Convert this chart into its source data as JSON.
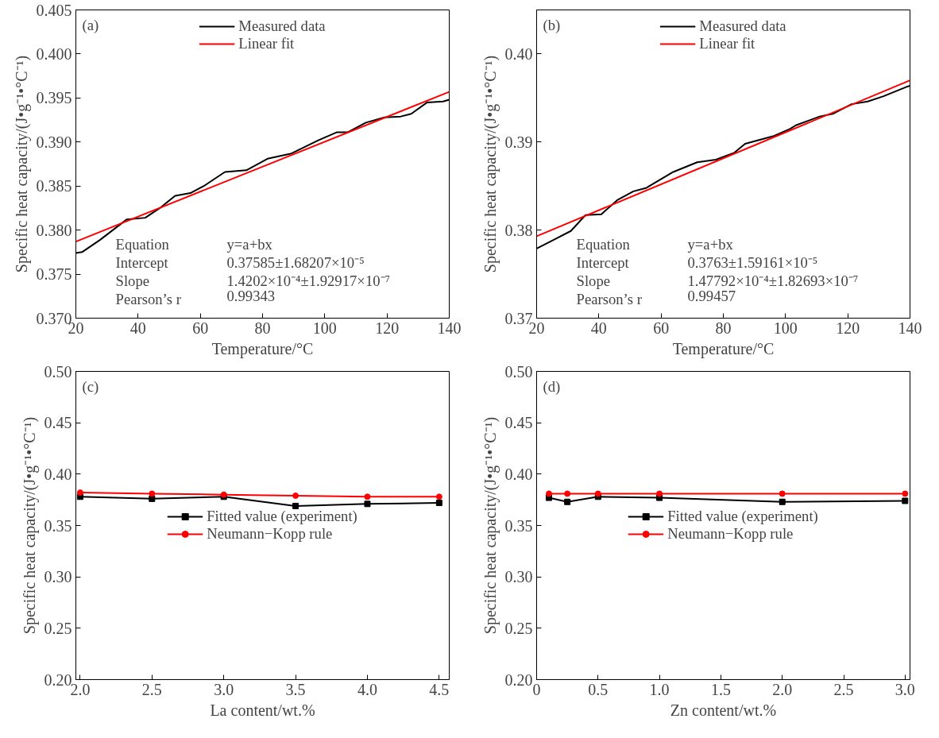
{
  "chart_data": [
    {
      "type": "line",
      "title": "(a)",
      "xlabel": "Temperature/°C",
      "ylabel": "Specific heat capacity/(J•g⁻¹•°C⁻¹)",
      "xlim": [
        20,
        140
      ],
      "xticks": [
        20,
        40,
        60,
        80,
        100,
        120,
        140
      ],
      "ylim": [
        0.37,
        0.405
      ],
      "yticks": [
        {
          "value": 0.37,
          "label": "0.370"
        },
        0.375,
        {
          "value": 0.38,
          "label": "0.380"
        },
        0.385,
        {
          "value": 0.39,
          "label": "0.390"
        },
        0.395,
        {
          "value": 0.4,
          "label": "0.400"
        },
        0.405
      ],
      "grid": false,
      "legend": "top",
      "marker": "none",
      "line_style": "solid",
      "series": [
        {
          "name": "Measured data",
          "color": "#000000",
          "x": [
            20,
            22,
            27.8,
            36.3,
            42.3,
            47.0,
            51.9,
            56.8,
            61.1,
            67.9,
            74.8,
            81.6,
            89.3,
            97.9,
            103.8,
            107.3,
            113.2,
            119.2,
            124.4,
            127.8,
            132.9,
            138.0,
            140
          ],
          "values": [
            0.3774,
            0.3775,
            0.3789,
            0.3812,
            0.3814,
            0.3825,
            0.3839,
            0.3842,
            0.385,
            0.3866,
            0.3868,
            0.3881,
            0.3887,
            0.3902,
            0.3911,
            0.3911,
            0.3922,
            0.3928,
            0.3929,
            0.3932,
            0.3945,
            0.3946,
            0.3948
          ]
        },
        {
          "name": "Linear fit",
          "color": "#ff0000",
          "x": [
            20,
            140
          ],
          "values": [
            0.3787,
            0.3957
          ]
        }
      ],
      "annotations": [
        "Equation",
        "y=a+bx",
        "Intercept",
        "0.37585±1.68207×10⁻⁵",
        "Slope",
        "1.4202×10⁻⁴±1.92917×10⁻⁷",
        "Pearson’s r",
        "0.99343"
      ]
    },
    {
      "type": "line",
      "title": "(b)",
      "xlabel": "Temperature/°C",
      "ylabel": "Specific heat capacity/(J•g⁻¹•°C⁻¹)",
      "xlim": [
        20,
        140
      ],
      "xticks": [
        20,
        40,
        60,
        80,
        100,
        120,
        140
      ],
      "ylim": [
        0.37,
        0.405
      ],
      "yticks": [
        0.37,
        0.38,
        0.39,
        {
          "value": 0.4,
          "label": "0.40"
        }
      ],
      "grid": false,
      "legend": "top",
      "marker": "none",
      "line_style": "solid",
      "series": [
        {
          "name": "Measured data",
          "color": "#000000",
          "x": [
            20,
            25.5,
            31.0,
            35.7,
            40.8,
            45.9,
            51.1,
            55.3,
            63.9,
            71.6,
            77.6,
            83.6,
            87.0,
            96.4,
            101.5,
            103.3,
            111.0,
            115.2,
            121.2,
            126.4,
            131.5,
            139.2,
            140
          ],
          "values": [
            0.3779,
            0.3789,
            0.3799,
            0.3817,
            0.3818,
            0.3834,
            0.3844,
            0.3848,
            0.3866,
            0.3877,
            0.388,
            0.3888,
            0.3898,
            0.3907,
            0.3915,
            0.3919,
            0.3929,
            0.3932,
            0.3943,
            0.3946,
            0.3952,
            0.3963,
            0.3964
          ]
        },
        {
          "name": "Linear fit",
          "color": "#ff0000",
          "x": [
            20,
            140
          ],
          "values": [
            0.3793,
            0.397
          ]
        }
      ],
      "annotations": [
        "Equation",
        "y=a+bx",
        "Intercept",
        "0.3763±1.59161×10⁻⁵",
        "Slope",
        "1.47792×10⁻⁴±1.82693×10⁻⁷",
        "Pearson’s r",
        "0.99457"
      ]
    },
    {
      "type": "line",
      "title": "(c)",
      "xlabel": "La content/wt.%",
      "ylabel": "Specific heat capacity/(J•g⁻¹•°C⁻¹)",
      "xlim": [
        1.97,
        4.57
      ],
      "xticks": [
        {
          "value": 2,
          "label": "2.0"
        },
        2.5,
        {
          "value": 3,
          "label": "3.0"
        },
        3.5,
        {
          "value": 4,
          "label": "4.0"
        },
        4.5
      ],
      "ylim": [
        0.2,
        0.5
      ],
      "yticks": [
        {
          "value": 0.2,
          "label": "0.20"
        },
        0.25,
        {
          "value": 0.3,
          "label": "0.30"
        },
        0.35,
        {
          "value": 0.4,
          "label": "0.40"
        },
        0.45,
        {
          "value": 0.5,
          "label": "0.50"
        }
      ],
      "grid": false,
      "legend": "bottom",
      "line_style": "solid",
      "x": [
        2.0,
        2.5,
        3.0,
        3.5,
        4.0,
        4.5
      ],
      "series": [
        {
          "name": "Fitted value (experiment)",
          "color": "#000000",
          "marker": "square",
          "values": [
            0.378,
            0.376,
            0.378,
            0.369,
            0.371,
            0.372
          ]
        },
        {
          "name": "Neumann−Kopp rule",
          "color": "#ff0000",
          "marker": "circle",
          "values": [
            0.382,
            0.381,
            0.38,
            0.379,
            0.378,
            0.378
          ]
        }
      ]
    },
    {
      "type": "line",
      "title": "(d)",
      "xlabel": "Zn content/wt.%",
      "ylabel": "Specific heat capacity/(J•g⁻¹•°C⁻¹)",
      "xlim": [
        0,
        3.04
      ],
      "xticks": [
        0,
        0.5,
        {
          "value": 1,
          "label": "1.0"
        },
        1.5,
        {
          "value": 2,
          "label": "2.0"
        },
        2.5,
        {
          "value": 3,
          "label": "3.0"
        }
      ],
      "ylim": [
        0.2,
        0.5
      ],
      "yticks": [
        {
          "value": 0.2,
          "label": "0.20"
        },
        0.25,
        {
          "value": 0.3,
          "label": "0.30"
        },
        0.35,
        {
          "value": 0.4,
          "label": "0.40"
        },
        0.45,
        {
          "value": 0.5,
          "label": "0.50"
        }
      ],
      "grid": false,
      "legend": "bottom",
      "line_style": "solid",
      "x": [
        0.1,
        0.25,
        0.5,
        1.0,
        2.0,
        3.0
      ],
      "series": [
        {
          "name": "Fitted value (experiment)",
          "color": "#000000",
          "marker": "square",
          "values": [
            0.377,
            0.373,
            0.378,
            0.377,
            0.373,
            0.374
          ]
        },
        {
          "name": "Neumann−Kopp rule",
          "color": "#ff0000",
          "marker": "circle",
          "values": [
            0.381,
            0.381,
            0.381,
            0.381,
            0.381,
            0.381
          ]
        }
      ]
    }
  ]
}
